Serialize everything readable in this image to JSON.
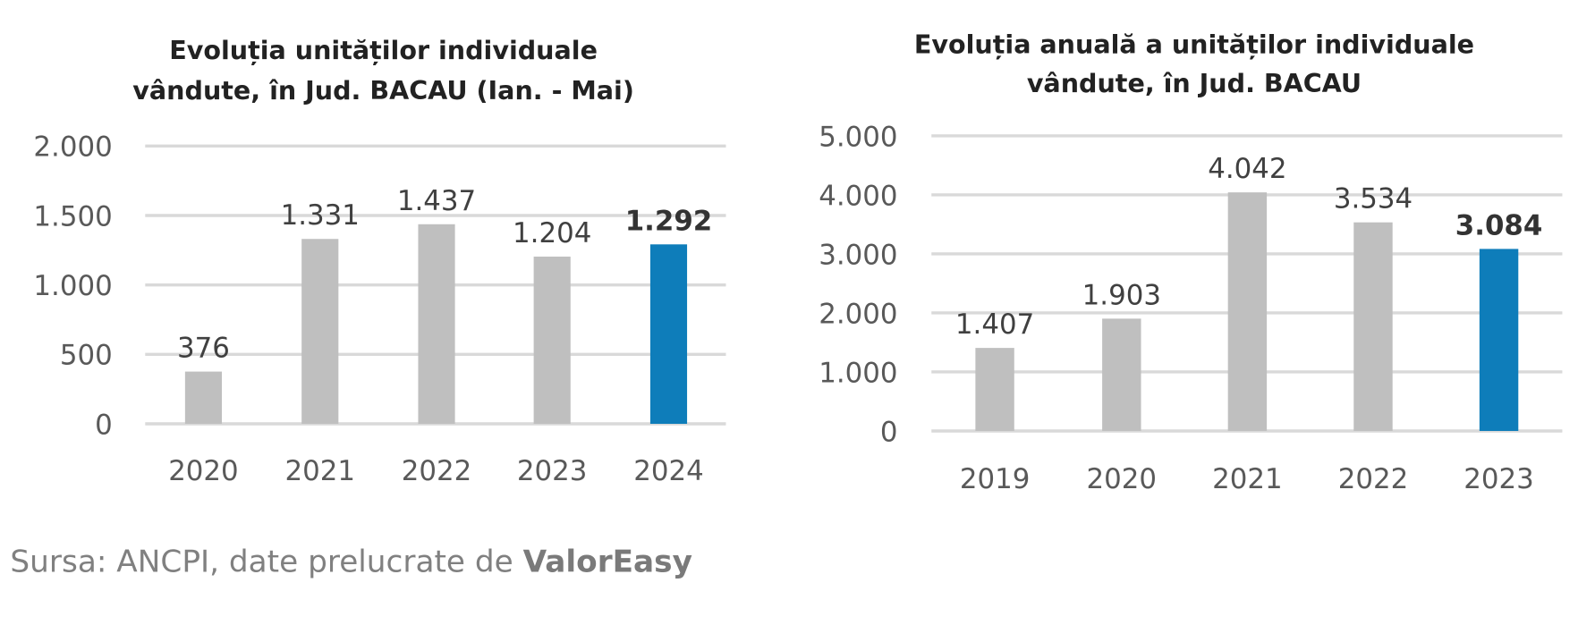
{
  "chart_data": [
    {
      "type": "bar",
      "title": [
        "Evoluția unităților individuale",
        "vândute, în Jud. BACAU (Ian. - Mai)"
      ],
      "categories": [
        "2020",
        "2021",
        "2022",
        "2023",
        "2024"
      ],
      "values": [
        376,
        1331,
        1437,
        1204,
        1292
      ],
      "value_labels": [
        "376",
        "1.331",
        "1.437",
        "1.204",
        "1.292"
      ],
      "highlight_index": 4,
      "yticks": [
        0,
        500,
        1000,
        1500,
        2000
      ],
      "ytick_labels": [
        "0",
        "500",
        "1.000",
        "1.500",
        "2.000"
      ],
      "ylim": [
        0,
        2000
      ],
      "grid": true,
      "xlabel": "",
      "ylabel": ""
    },
    {
      "type": "bar",
      "title": [
        "Evoluția anuală a unităților individuale",
        "vândute, în Jud. BACAU"
      ],
      "categories": [
        "2019",
        "2020",
        "2021",
        "2022",
        "2023"
      ],
      "values": [
        1407,
        1903,
        4042,
        3534,
        3084
      ],
      "value_labels": [
        "1.407",
        "1.903",
        "4.042",
        "3.534",
        "3.084"
      ],
      "highlight_index": 4,
      "yticks": [
        0,
        1000,
        2000,
        3000,
        4000,
        5000
      ],
      "ytick_labels": [
        "0",
        "1.000",
        "2.000",
        "3.000",
        "4.000",
        "5.000"
      ],
      "ylim": [
        0,
        5000
      ],
      "grid": true,
      "xlabel": "",
      "ylabel": ""
    }
  ],
  "colors": {
    "bar": "#bfbfbf",
    "highlight": "#0e7dba"
  },
  "source": {
    "prefix": "Sursa: ANCPI, date prelucrate de ",
    "brand": "ValorEasy"
  }
}
